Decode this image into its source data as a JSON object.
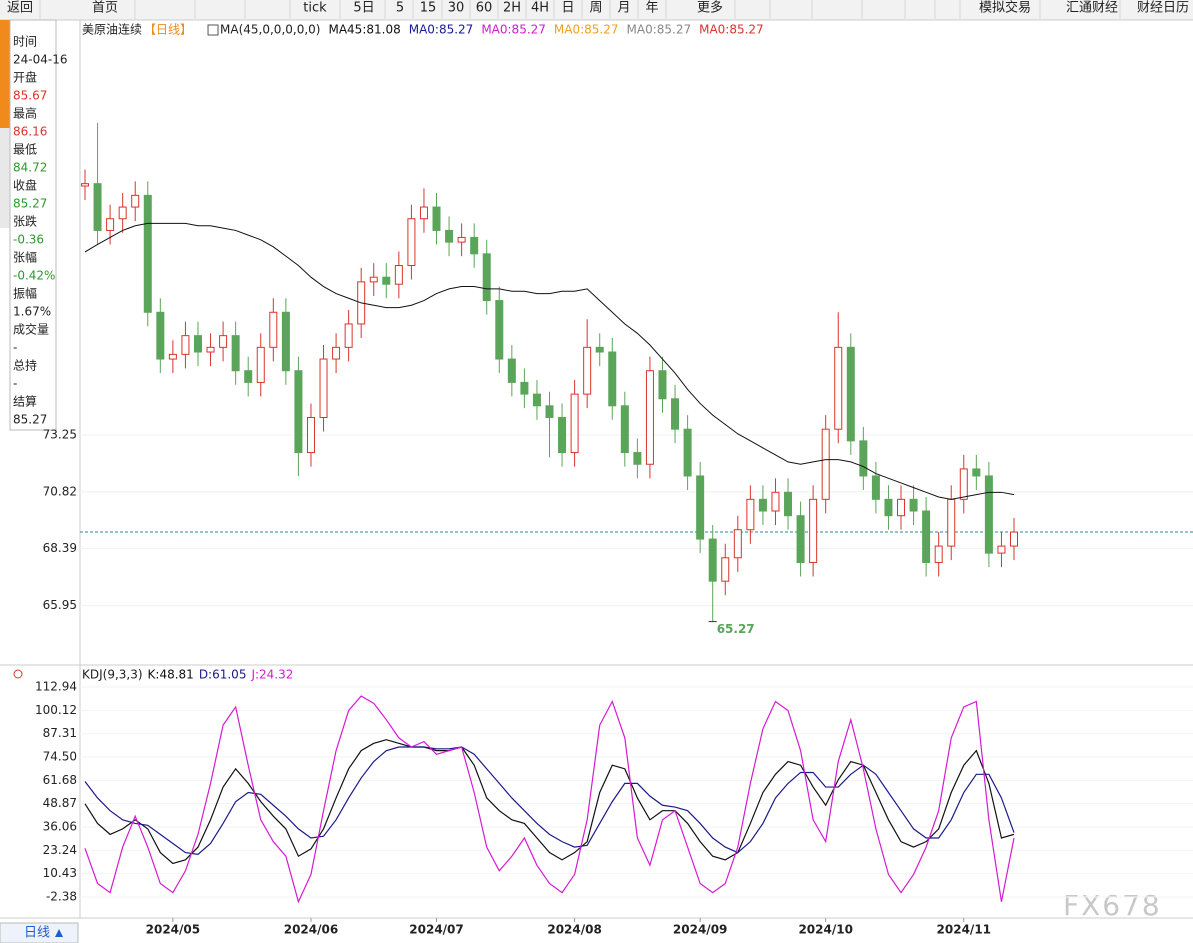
{
  "toolbar": [
    "返回",
    "首页",
    "tick",
    "5日",
    "5",
    "15",
    "30",
    "60",
    "2H",
    "4H",
    "日",
    "周",
    "月",
    "年",
    "更多",
    "模拟交易",
    "汇通财经",
    "财经日历"
  ],
  "info": [
    {
      "label": "时间",
      "value": "24-04-16",
      "color": "#222222"
    },
    {
      "label": "开盘",
      "value": "85.67",
      "color": "#d9342b"
    },
    {
      "label": "最高",
      "value": "86.16",
      "color": "#d9342b"
    },
    {
      "label": "最低",
      "value": "84.72",
      "color": "#2a9a2a"
    },
    {
      "label": "收盘",
      "value": "85.27",
      "color": "#2a9a2a"
    },
    {
      "label": "张跌",
      "value": "-0.36",
      "color": "#2a9a2a"
    },
    {
      "label": "张幅",
      "value": "-0.42%",
      "color": "#2a9a2a"
    },
    {
      "label": "振幅",
      "value": "1.67%",
      "color": "#222222"
    },
    {
      "label": "成交量",
      "value": "-",
      "color": "#222222"
    },
    {
      "label": "总持",
      "value": "-",
      "color": "#222222"
    },
    {
      "label": "结算",
      "value": "85.27",
      "color": "#222222"
    }
  ],
  "period_button": "日线",
  "watermark": "FX678",
  "chart_data": [
    {
      "type": "candlestick",
      "title": "美原油连续",
      "period": "【日线】",
      "indicator": "MA(45,0,0,0,0,0)",
      "up_color": "#d9342b",
      "down_color": "#5aa55a",
      "low_label": "65.27",
      "last_line_color": "#2a8a9a",
      "open": [
        83.9,
        84.0,
        82.0,
        82.5,
        83.0,
        83.5,
        78.5,
        76.5,
        76.7,
        77.5,
        76.8,
        77.0,
        77.5,
        76.0,
        75.5,
        77.0,
        78.5,
        76.0,
        72.5,
        74.0,
        76.5,
        77.0,
        78.0,
        79.8,
        80.0,
        79.7,
        80.5,
        82.5,
        83.0,
        82.0,
        81.5,
        81.7,
        81.0,
        79.0,
        76.5,
        75.5,
        75.0,
        74.5,
        74.0,
        72.5,
        75.0,
        77.0,
        76.8,
        74.5,
        72.5,
        72.0,
        76.0,
        74.8,
        73.5,
        71.5,
        68.8,
        67.0,
        68.0,
        69.2,
        70.5,
        70.0,
        70.8,
        69.8,
        67.8,
        70.5,
        73.5,
        77.0,
        73.0,
        71.5,
        70.5,
        69.8,
        70.5,
        70.0,
        67.8,
        68.5,
        70.5,
        71.8,
        71.5,
        68.2,
        68.5
      ],
      "high": [
        84.6,
        86.6,
        83.1,
        83.6,
        84.1,
        84.1,
        79.1,
        77.3,
        78.1,
        78.1,
        77.6,
        78.1,
        78.1,
        76.6,
        77.6,
        79.1,
        79.1,
        76.6,
        74.6,
        77.1,
        77.6,
        78.6,
        80.4,
        80.6,
        80.6,
        81.1,
        83.1,
        83.8,
        83.6,
        82.6,
        82.3,
        82.3,
        81.6,
        79.6,
        77.1,
        76.1,
        75.6,
        75.1,
        74.6,
        75.6,
        78.2,
        77.6,
        77.4,
        75.1,
        73.1,
        76.6,
        76.6,
        75.4,
        74.1,
        72.1,
        69.4,
        68.6,
        69.8,
        71.1,
        71.1,
        71.4,
        71.4,
        70.4,
        71.1,
        74.1,
        78.5,
        77.6,
        73.6,
        72.1,
        71.1,
        71.1,
        71.1,
        70.6,
        69.1,
        71.1,
        72.4,
        72.4,
        72.1,
        69.1,
        69.7
      ],
      "low": [
        83.3,
        81.4,
        81.4,
        81.9,
        82.4,
        77.9,
        75.9,
        75.9,
        76.1,
        76.2,
        76.2,
        76.4,
        75.4,
        74.9,
        74.9,
        76.4,
        75.4,
        71.5,
        71.9,
        73.4,
        75.9,
        76.4,
        77.4,
        79.2,
        79.1,
        79.1,
        79.9,
        81.9,
        81.4,
        80.9,
        80.9,
        80.4,
        78.4,
        75.9,
        74.9,
        74.4,
        73.9,
        72.3,
        71.9,
        71.9,
        74.4,
        76.2,
        73.9,
        71.9,
        71.4,
        71.4,
        74.2,
        72.9,
        70.9,
        68.2,
        65.27,
        66.4,
        67.4,
        68.6,
        69.4,
        69.4,
        69.2,
        67.2,
        67.2,
        69.9,
        72.9,
        72.4,
        70.9,
        69.9,
        69.2,
        69.2,
        69.4,
        67.2,
        67.2,
        67.9,
        69.9,
        70.9,
        67.6,
        67.6,
        67.9
      ],
      "close": [
        84.0,
        82.0,
        82.5,
        83.0,
        83.5,
        78.5,
        76.5,
        76.7,
        77.5,
        76.8,
        77.0,
        77.5,
        76.0,
        75.5,
        77.0,
        78.5,
        76.0,
        72.5,
        74.0,
        76.5,
        77.0,
        78.0,
        79.8,
        80.0,
        79.7,
        80.5,
        82.5,
        83.0,
        82.0,
        81.5,
        81.7,
        81.0,
        79.0,
        76.5,
        75.5,
        75.0,
        74.5,
        74.0,
        72.5,
        75.0,
        77.0,
        76.8,
        74.5,
        72.5,
        72.0,
        76.0,
        74.8,
        73.5,
        71.5,
        68.8,
        67.0,
        68.0,
        69.2,
        70.5,
        70.0,
        70.8,
        69.8,
        67.8,
        70.5,
        73.5,
        77.0,
        73.0,
        71.5,
        70.5,
        69.8,
        70.5,
        70.0,
        67.8,
        68.5,
        70.5,
        71.8,
        71.5,
        68.2,
        68.5,
        69.1
      ],
      "series": [
        {
          "name": "MA45:81.08",
          "color": "#111111",
          "values": [
            81.08,
            81.4,
            81.7,
            82.0,
            82.2,
            82.3,
            82.3,
            82.3,
            82.3,
            82.2,
            82.2,
            82.1,
            82.0,
            81.8,
            81.6,
            81.3,
            80.9,
            80.5,
            80.0,
            79.6,
            79.3,
            79.1,
            78.9,
            78.8,
            78.7,
            78.7,
            78.8,
            79.0,
            79.3,
            79.5,
            79.6,
            79.6,
            79.5,
            79.5,
            79.4,
            79.4,
            79.3,
            79.3,
            79.4,
            79.4,
            79.5,
            79.0,
            78.5,
            78.0,
            77.6,
            77.1,
            76.5,
            75.9,
            75.2,
            74.6,
            74.1,
            73.7,
            73.3,
            73.0,
            72.7,
            72.4,
            72.1,
            72.0,
            72.1,
            72.2,
            72.2,
            72.1,
            71.9,
            71.6,
            71.4,
            71.2,
            71.0,
            70.8,
            70.6,
            70.5,
            70.6,
            70.7,
            70.8,
            70.8,
            70.7
          ]
        }
      ],
      "extra_legend": [
        {
          "label": "MA0:85.27",
          "color": "#1a1a9a"
        },
        {
          "label": "MA0:85.27",
          "color": "#d41ad4"
        },
        {
          "label": "MA0:85.27",
          "color": "#f0a020"
        },
        {
          "label": "MA0:85.27",
          "color": "#888888"
        },
        {
          "label": "MA0:85.27",
          "color": "#d9342b"
        }
      ],
      "ylim": [
        63.5,
        91.0
      ],
      "yticks": [
        65.95,
        68.39,
        70.82,
        73.25
      ],
      "grid": true,
      "xticks": [
        {
          "value": 7,
          "label": "2024/05"
        },
        {
          "value": 18,
          "label": "2024/06"
        },
        {
          "value": 28,
          "label": "2024/07"
        },
        {
          "value": 39,
          "label": "2024/08"
        },
        {
          "value": 49,
          "label": "2024/09"
        },
        {
          "value": 59,
          "label": "2024/10"
        },
        {
          "value": 70,
          "label": "2024/11"
        }
      ]
    },
    {
      "type": "line",
      "title": "KDJ(9,3,3)",
      "series": [
        {
          "name": "K:48.81",
          "color": "#111111",
          "values": [
            48.81,
            38,
            32,
            35,
            40,
            35,
            22,
            16,
            18,
            25,
            40,
            58,
            68,
            60,
            50,
            42,
            35,
            20,
            24,
            35,
            52,
            68,
            78,
            82,
            84,
            82,
            80,
            80,
            78,
            78,
            80,
            70,
            52,
            45,
            40,
            38,
            30,
            22,
            18,
            22,
            28,
            55,
            70,
            68,
            52,
            40,
            45,
            45,
            38,
            28,
            20,
            18,
            22,
            38,
            55,
            65,
            72,
            70,
            58,
            48,
            62,
            72,
            70,
            55,
            40,
            28,
            25,
            28,
            35,
            55,
            70,
            78,
            60,
            30,
            32
          ]
        },
        {
          "name": "D:61.05",
          "color": "#1a1a8a",
          "values": [
            61.05,
            52,
            45,
            40,
            38,
            37,
            32,
            27,
            22,
            21,
            27,
            38,
            50,
            55,
            54,
            48,
            42,
            35,
            30,
            31,
            40,
            52,
            63,
            72,
            78,
            80,
            80,
            80,
            79,
            79,
            80,
            76,
            68,
            60,
            52,
            45,
            38,
            32,
            28,
            25,
            26,
            38,
            50,
            60,
            60,
            53,
            48,
            47,
            45,
            38,
            30,
            25,
            22,
            28,
            38,
            52,
            60,
            66,
            66,
            58,
            58,
            65,
            70,
            65,
            55,
            45,
            35,
            30,
            30,
            40,
            55,
            65,
            65,
            52,
            33
          ]
        },
        {
          "name": "J:24.32",
          "color": "#d41ad4",
          "values": [
            24.32,
            5,
            0,
            25,
            42,
            25,
            5,
            0,
            12,
            32,
            60,
            92,
            102,
            70,
            40,
            28,
            20,
            -5,
            10,
            45,
            78,
            100,
            108,
            104,
            95,
            85,
            80,
            83,
            76,
            78,
            80,
            55,
            25,
            12,
            20,
            30,
            15,
            5,
            0,
            10,
            40,
            92,
            105,
            85,
            30,
            15,
            40,
            45,
            25,
            5,
            0,
            5,
            25,
            60,
            90,
            105,
            100,
            78,
            40,
            28,
            72,
            95,
            68,
            35,
            10,
            0,
            10,
            25,
            45,
            85,
            102,
            105,
            40,
            -5,
            30
          ]
        }
      ],
      "ylim": [
        -12.3,
        123.4
      ],
      "yticks": [
        -2.38,
        10.43,
        23.24,
        36.06,
        48.87,
        61.68,
        {
          "value": 74.5,
          "label": "74.50"
        },
        87.31,
        100.12,
        112.94
      ]
    }
  ]
}
